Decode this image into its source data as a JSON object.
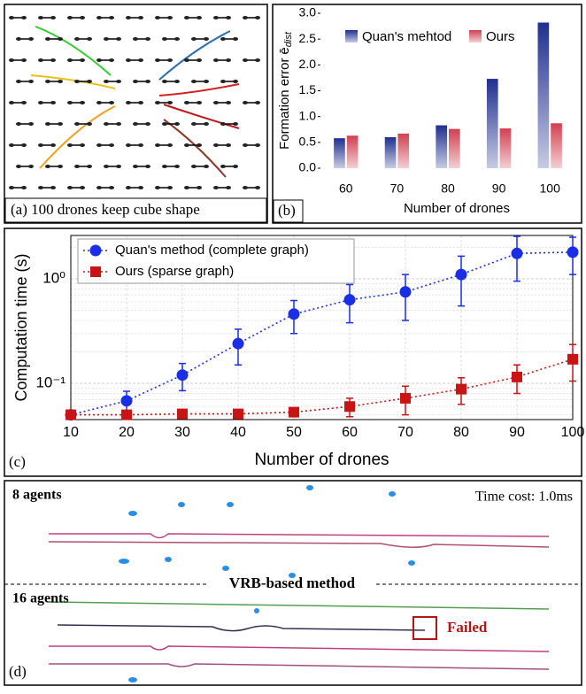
{
  "panels": {
    "a": {
      "caption": "(a) 100 drones keep cube shape"
    },
    "d": {
      "caption": "(d)",
      "label_top": "8 agents",
      "time_cost": "Time cost: 1.0ms",
      "divider": "VRB-based method",
      "label_bottom": "16 agents",
      "failed": "Failed"
    }
  },
  "chart_data": [
    {
      "type": "bar",
      "caption": "(b)",
      "ylabel": "Formation error",
      "ylabel_symbol": "ē",
      "ylabel_subscript": "dist",
      "xlabel": "Number of drones",
      "categories": [
        "60",
        "70",
        "80",
        "90",
        "100"
      ],
      "series": [
        {
          "name": "Quan's mehtod",
          "color": "#1f2f8f",
          "values": [
            0.58,
            0.6,
            0.83,
            1.73,
            2.82
          ]
        },
        {
          "name": "Ours",
          "color": "#d04050",
          "values": [
            0.63,
            0.67,
            0.76,
            0.77,
            0.87
          ]
        }
      ],
      "ylim": [
        0,
        3.0
      ],
      "yticks": [
        {
          "value": 0,
          "label": "0.0"
        },
        0.5,
        {
          "value": 1,
          "label": "1.0"
        },
        1.5,
        {
          "value": 2,
          "label": "2.0"
        },
        2.5,
        {
          "value": 3,
          "label": "3.0"
        }
      ],
      "legend": "top"
    },
    {
      "type": "line",
      "caption": "(c)",
      "xlabel": "Number of drones",
      "ylabel": "Computation time (s)",
      "x": [
        10,
        20,
        30,
        40,
        50,
        60,
        70,
        80,
        90,
        100
      ],
      "series": [
        {
          "name": "Quan's method (complete graph)",
          "color": "#1a2ee6",
          "marker": "circle",
          "values": [
            0.05,
            0.068,
            0.12,
            0.24,
            0.46,
            0.63,
            0.75,
            1.1,
            1.75,
            1.8
          ],
          "errors": [
            0.002,
            0.016,
            0.035,
            0.09,
            0.16,
            0.25,
            0.35,
            0.55,
            0.8,
            0.7
          ]
        },
        {
          "name": "Ours (sparse graph)",
          "color": "#c81414",
          "marker": "square",
          "values": [
            0.05,
            0.05,
            0.051,
            0.051,
            0.053,
            0.06,
            0.072,
            0.088,
            0.115,
            0.17
          ],
          "errors": [
            0.001,
            0.001,
            0.002,
            0.002,
            0.005,
            0.012,
            0.022,
            0.025,
            0.035,
            0.065
          ]
        }
      ],
      "xlim": [
        10,
        100
      ],
      "xticks": [
        10,
        20,
        30,
        40,
        50,
        60,
        70,
        80,
        90,
        100
      ],
      "ylim": [
        0.045,
        2.6
      ],
      "yscale": "log",
      "yticks": [
        {
          "value": 0.1,
          "label": "10⁻¹"
        },
        {
          "value": 1,
          "label": "10⁰"
        }
      ],
      "grid": true,
      "legend": "upper left"
    }
  ]
}
